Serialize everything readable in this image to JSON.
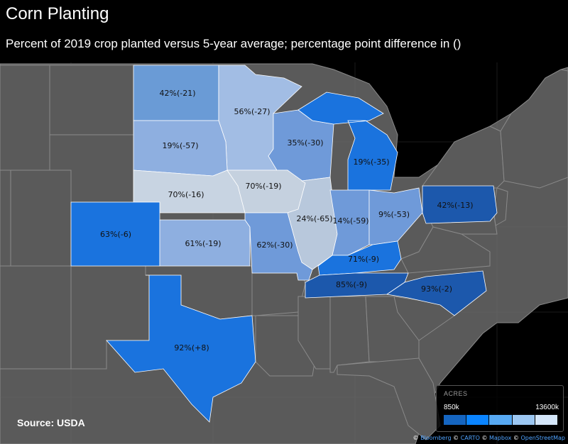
{
  "header": {
    "title": "Corn Planting",
    "subtitle": "Percent of 2019 crop planted versus 5-year average; percentage point difference in ()"
  },
  "source": "Source: USDA",
  "legend": {
    "title": "ACRES",
    "min": "850k",
    "max": "13600k",
    "colors": [
      "#1565c0",
      "#0a84ff",
      "#57a9f3",
      "#9cc7f2",
      "#d4e6fa"
    ]
  },
  "attribution": {
    "prefix": "© ",
    "items": [
      "Bloomberg",
      "CARTO",
      "Mapbox",
      "OpenStreetMap"
    ]
  },
  "colors": {
    "background": "#000000",
    "land": "#5a5a5a",
    "border": "#8a8a8a"
  },
  "states": [
    {
      "id": "nd",
      "label": "42%(-21)",
      "color": "#6a9bd6"
    },
    {
      "id": "mn",
      "label": "56%(-27)",
      "color": "#a2bde4"
    },
    {
      "id": "sd",
      "label": "19%(-57)",
      "color": "#8eafe0"
    },
    {
      "id": "wi",
      "label": "35%(-30)",
      "color": "#6f9ad9"
    },
    {
      "id": "mi",
      "label": "19%(-35)",
      "color": "#1a73de"
    },
    {
      "id": "ne",
      "label": "70%(-16)",
      "color": "#c8d4e2"
    },
    {
      "id": "ia",
      "label": "70%(-19)",
      "color": "#c5d1df"
    },
    {
      "id": "il",
      "label": "24%(-65)",
      "color": "#b8c8dc"
    },
    {
      "id": "in",
      "label": "14%(-59)",
      "color": "#6f9ad9"
    },
    {
      "id": "oh",
      "label": "9%(-53)",
      "color": "#6f9ad9"
    },
    {
      "id": "pa",
      "label": "42%(-13)",
      "color": "#1c58ac"
    },
    {
      "id": "co",
      "label": "63%(-6)",
      "color": "#1a73de"
    },
    {
      "id": "ks",
      "label": "61%(-19)",
      "color": "#8eafe0"
    },
    {
      "id": "mo",
      "label": "62%(-30)",
      "color": "#6f9ad9"
    },
    {
      "id": "ky",
      "label": "71%(-9)",
      "color": "#1a73de"
    },
    {
      "id": "tn",
      "label": "85%(-9)",
      "color": "#1c58ac"
    },
    {
      "id": "nc",
      "label": "93%(-2)",
      "color": "#1c58ac"
    },
    {
      "id": "tx",
      "label": "92%(+8)",
      "color": "#1a73de"
    }
  ]
}
